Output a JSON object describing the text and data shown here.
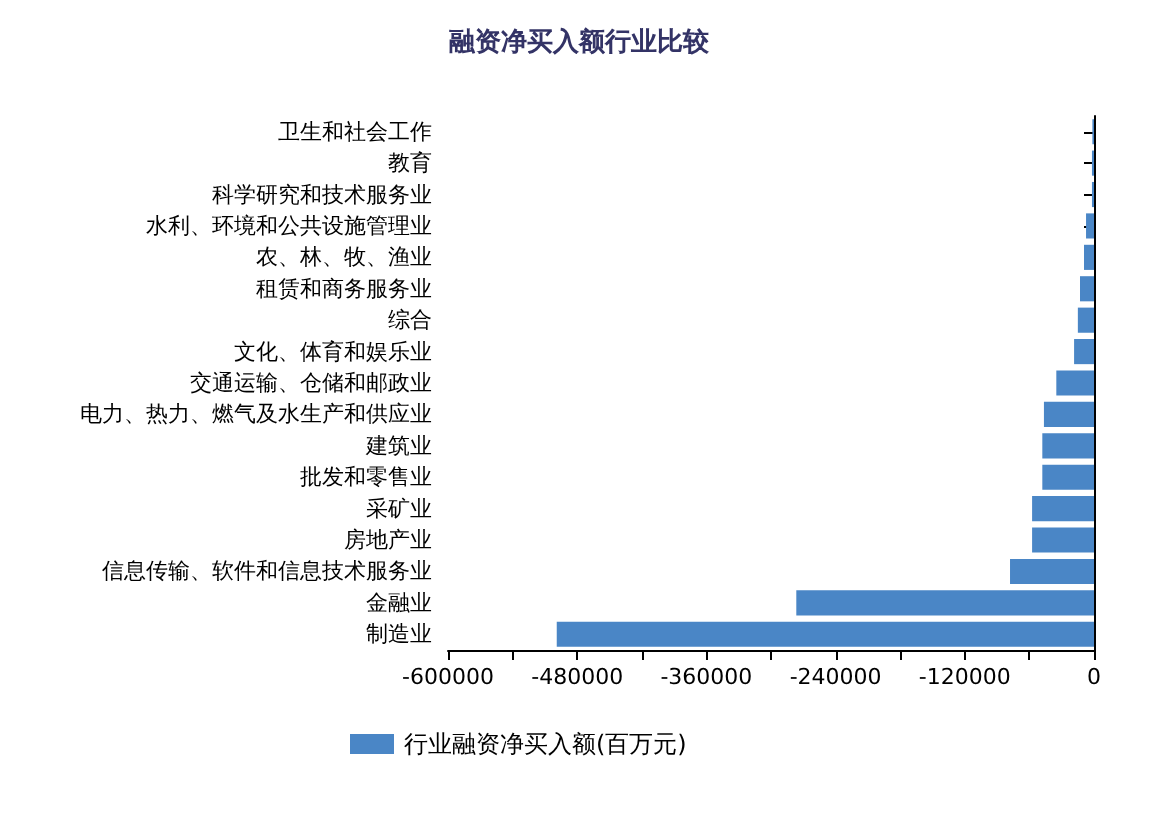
{
  "chart_data": {
    "type": "bar",
    "orientation": "horizontal",
    "title": "融资净买入额行业比较",
    "categories": [
      "卫生和社会工作",
      "教育",
      "科学研究和技术服务业",
      "水利、环境和公共设施管理业",
      "农、林、牧、渔业",
      "租赁和商务服务业",
      "综合",
      "文化、体育和娱乐业",
      "交通运输、仓储和邮政业",
      "电力、热力、燃气及水生产和供应业",
      "建筑业",
      "批发和零售业",
      "采矿业",
      "房地产业",
      "信息传输、软件和信息技术服务业",
      "金融业",
      "制造业"
    ],
    "series": [
      {
        "name": "行业融资净买入额(百万元)",
        "color": "#4a86c6",
        "values": [
          -1500,
          -1900,
          -1900,
          -7400,
          -9300,
          -13000,
          -15000,
          -18500,
          -35000,
          -46500,
          -48000,
          -48000,
          -57500,
          -57500,
          -78000,
          -276500,
          -499000
        ]
      }
    ],
    "xlim": [
      -600000,
      0
    ],
    "xticks": [
      -600000,
      {
        "value": -540000,
        "label": null
      },
      -480000,
      {
        "value": -420000,
        "label": null
      },
      -360000,
      {
        "value": -300000,
        "label": null
      },
      -240000,
      {
        "value": -180000,
        "label": null
      },
      -120000,
      {
        "value": -60000,
        "label": null
      },
      0
    ],
    "grid": false,
    "legend": "bottom"
  }
}
